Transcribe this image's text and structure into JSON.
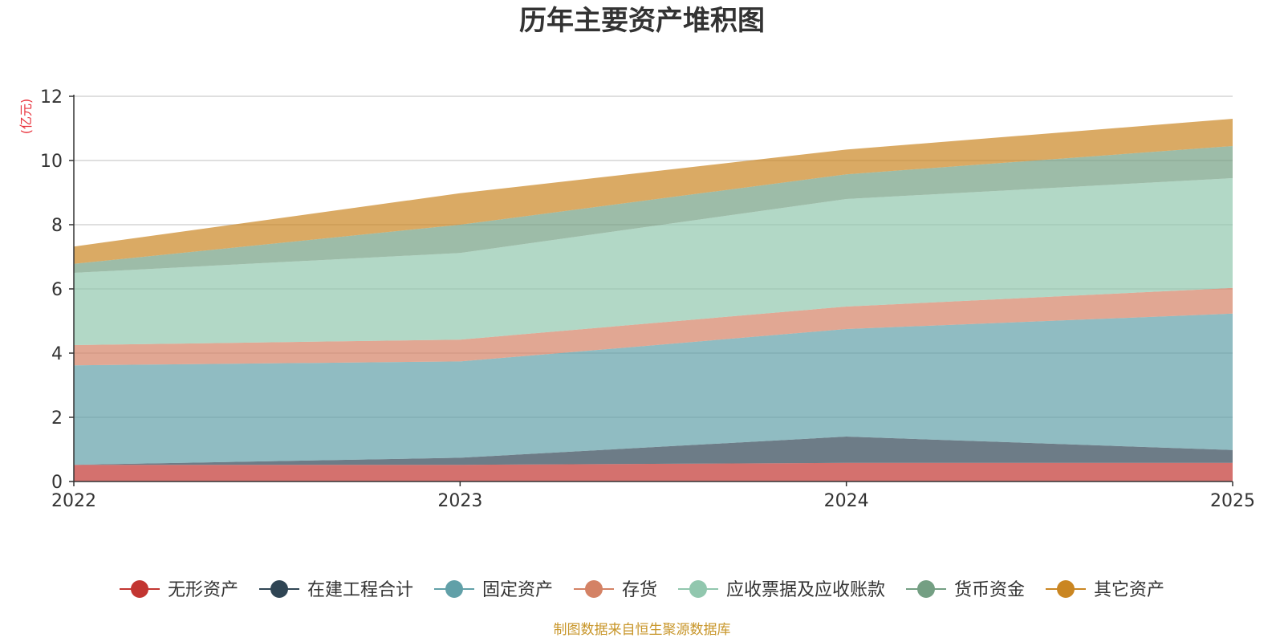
{
  "chart_data": {
    "type": "area",
    "stacked": true,
    "title": "历年主要资产堆积图",
    "unit_label": "(亿元)",
    "source": "制图数据来自恒生聚源数据库",
    "x": [
      "2022",
      "2023",
      "2024",
      "2025"
    ],
    "ylim": [
      0,
      12
    ],
    "yticks": [
      0,
      2,
      4,
      6,
      8,
      10,
      12
    ],
    "legend_position": "bottom",
    "series": [
      {
        "name": "无形资产",
        "values": [
          0.52,
          0.52,
          0.58,
          0.58
        ],
        "color": "#c23531"
      },
      {
        "name": "在建工程合计",
        "values": [
          0.0,
          0.22,
          0.82,
          0.4
        ],
        "color": "#2f4554"
      },
      {
        "name": "固定资产",
        "values": [
          3.1,
          3.0,
          3.35,
          4.25
        ],
        "color": "#61a0a8"
      },
      {
        "name": "存货",
        "values": [
          0.63,
          0.68,
          0.7,
          0.8
        ],
        "color": "#d48265"
      },
      {
        "name": "应收票据及应收账款",
        "values": [
          2.25,
          2.7,
          3.35,
          3.42
        ],
        "color": "#91c7ae"
      },
      {
        "name": "货币资金",
        "values": [
          0.28,
          0.88,
          0.77,
          1.0
        ],
        "color": "#749f83"
      },
      {
        "name": "其它资产",
        "values": [
          0.54,
          0.98,
          0.77,
          0.85
        ],
        "color": "#ca8622"
      }
    ]
  }
}
